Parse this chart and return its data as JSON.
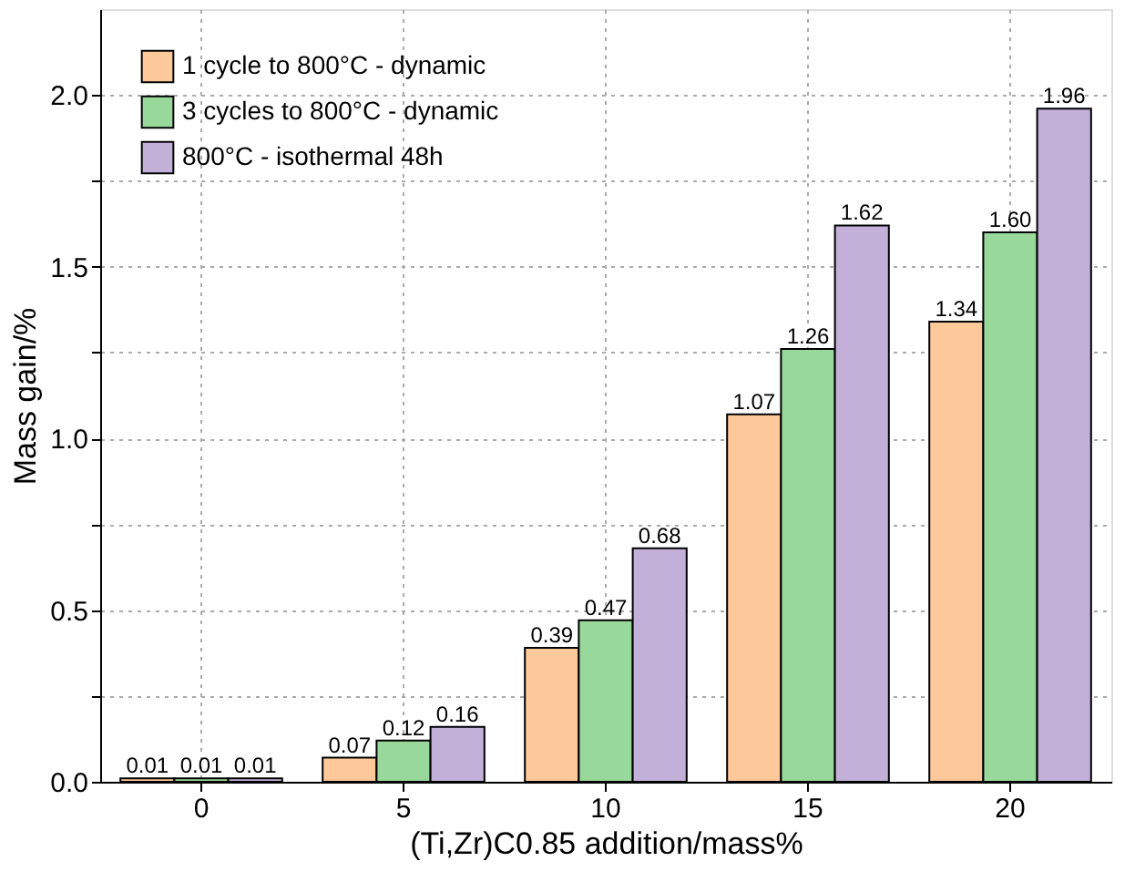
{
  "chart_data": {
    "type": "bar",
    "xlabel": "(Ti,Zr)C0.85 addition/mass%",
    "ylabel": "Mass gain/%",
    "categories": [
      "0",
      "5",
      "10",
      "15",
      "20"
    ],
    "series": [
      {
        "name": "1 cycle to 800°C - dynamic",
        "color": "#fdc99a",
        "values": [
          0.01,
          0.07,
          0.39,
          1.07,
          1.34
        ],
        "value_labels": [
          "0.01",
          "0.07",
          "0.39",
          "1.07",
          "1.34"
        ]
      },
      {
        "name": "3 cycles to 800°C - dynamic",
        "color": "#98d89a",
        "values": [
          0.01,
          0.12,
          0.47,
          1.26,
          1.6
        ],
        "value_labels": [
          "0.01",
          "0.12",
          "0.47",
          "1.26",
          "1.60"
        ]
      },
      {
        "name": "800°C - isothermal 48h",
        "color": "#c2b0d8",
        "values": [
          0.01,
          0.16,
          0.68,
          1.62,
          1.96
        ],
        "value_labels": [
          "0.01",
          "0.16",
          "0.68",
          "1.62",
          "1.96"
        ]
      }
    ],
    "ylim": [
      0,
      2.25
    ],
    "yticks": [
      {
        "value": 0,
        "label": "0.0"
      },
      {
        "value": 0.25,
        "label": null
      },
      0.5,
      {
        "value": 0.75,
        "label": null
      },
      {
        "value": 1,
        "label": "1.0"
      },
      {
        "value": 1.25,
        "label": null
      },
      1.5,
      {
        "value": 1.75,
        "label": null
      },
      {
        "value": 2,
        "label": "2.0"
      }
    ],
    "grid": true,
    "legend": "top left"
  }
}
